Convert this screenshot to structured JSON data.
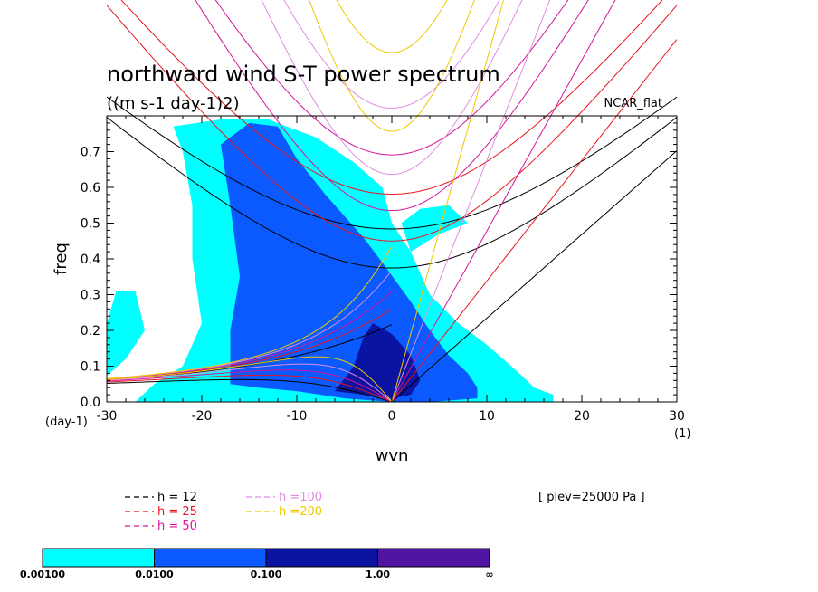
{
  "chart_data": {
    "type": "heatmap",
    "title": "northward wind S-T power spectrum",
    "subtitle": "((m s-1 day-1)2)",
    "corner_label": "NCAR_flat",
    "xlabel": "wvn",
    "ylabel": "freq",
    "x_unit": "(1)",
    "y_unit": "(day-1)",
    "xlim": [
      -30,
      30
    ],
    "ylim": [
      0,
      0.8
    ],
    "x_ticks": [
      -30,
      -20,
      -10,
      0,
      10,
      20,
      30
    ],
    "x_tick_labels": [
      "-30",
      "-20",
      "-10",
      "0",
      "10",
      "20",
      "30"
    ],
    "y_ticks": [
      0,
      0.1,
      0.2,
      0.3,
      0.4,
      0.5,
      0.6,
      0.7
    ],
    "y_tick_labels": [
      "0.0",
      "0.1",
      "0.2",
      "0.3",
      "0.4",
      "0.5",
      "0.6",
      "0.7"
    ],
    "annotation": "[ plev=25000 Pa ]",
    "dispersion_curves": [
      {
        "label": "h = 12",
        "color": "#000000",
        "equivalent_depth_m": 12
      },
      {
        "label": "h = 25",
        "color": "#e8141e",
        "equivalent_depth_m": 25
      },
      {
        "label": "h = 50",
        "color": "#d6149a",
        "equivalent_depth_m": 50
      },
      {
        "label": "h =100",
        "color": "#e08ce0",
        "equivalent_depth_m": 100
      },
      {
        "label": "h =200",
        "color": "#f0c800",
        "equivalent_depth_m": 200
      }
    ],
    "colorbar": {
      "colors": [
        "#00ffff",
        "#0a5aff",
        "#0a14a0",
        "#5014a0"
      ],
      "labels": [
        "0.00100",
        "0.0100",
        "0.100",
        "1.00",
        "∞"
      ]
    },
    "power_regions": [
      {
        "level": 1,
        "color": "#00ffff",
        "polygon": [
          [
            -27,
            0
          ],
          [
            -25,
            0.05
          ],
          [
            -22,
            0.1
          ],
          [
            -20,
            0.22
          ],
          [
            -21,
            0.4
          ],
          [
            -21,
            0.55
          ],
          [
            -22,
            0.7
          ],
          [
            -23,
            0.77
          ],
          [
            -18,
            0.79
          ],
          [
            -13,
            0.79
          ],
          [
            -8,
            0.74
          ],
          [
            -4,
            0.67
          ],
          [
            -1,
            0.6
          ],
          [
            0,
            0.5
          ],
          [
            2,
            0.42
          ],
          [
            4,
            0.3
          ],
          [
            7,
            0.22
          ],
          [
            10,
            0.16
          ],
          [
            13,
            0.09
          ],
          [
            15,
            0.04
          ],
          [
            17,
            0.02
          ],
          [
            17,
            0
          ],
          [
            10,
            0
          ],
          [
            5,
            0
          ],
          [
            0,
            0
          ],
          [
            -10,
            0
          ],
          [
            -20,
            0
          ]
        ]
      },
      {
        "level": 1,
        "color": "#00ffff",
        "polygon": [
          [
            -31,
            0.05
          ],
          [
            -28,
            0.12
          ],
          [
            -26,
            0.2
          ],
          [
            -27,
            0.31
          ],
          [
            -29,
            0.31
          ],
          [
            -30,
            0.22
          ],
          [
            -31,
            0.12
          ]
        ]
      },
      {
        "level": 1,
        "color": "#00ffff",
        "polygon": [
          [
            2,
            0.42
          ],
          [
            5,
            0.47
          ],
          [
            8,
            0.5
          ],
          [
            6,
            0.55
          ],
          [
            3,
            0.54
          ],
          [
            1,
            0.5
          ]
        ]
      },
      {
        "level": 2,
        "color": "#0a5aff",
        "polygon": [
          [
            -17,
            0.05
          ],
          [
            -17,
            0.2
          ],
          [
            -16,
            0.35
          ],
          [
            -17,
            0.55
          ],
          [
            -18,
            0.72
          ],
          [
            -15,
            0.78
          ],
          [
            -12,
            0.77
          ],
          [
            -10,
            0.68
          ],
          [
            -7,
            0.58
          ],
          [
            -3,
            0.46
          ],
          [
            -1,
            0.39
          ],
          [
            2,
            0.28
          ],
          [
            4,
            0.2
          ],
          [
            6,
            0.13
          ],
          [
            8,
            0.08
          ],
          [
            9,
            0.04
          ],
          [
            9,
            0.01
          ],
          [
            4,
            0
          ],
          [
            0,
            0
          ],
          [
            -5,
            0.01
          ],
          [
            -10,
            0.03
          ],
          [
            -14,
            0.04
          ]
        ]
      },
      {
        "level": 3,
        "color": "#0a14a0",
        "polygon": [
          [
            -6,
            0.03
          ],
          [
            -4,
            0.1
          ],
          [
            -3,
            0.18
          ],
          [
            -2,
            0.22
          ],
          [
            0,
            0.19
          ],
          [
            2,
            0.13
          ],
          [
            3,
            0.06
          ],
          [
            2,
            0.02
          ],
          [
            0,
            0.01
          ]
        ]
      }
    ]
  }
}
